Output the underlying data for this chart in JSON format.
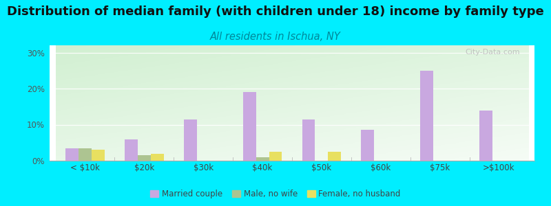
{
  "title": "Distribution of median family (with children under 18) income by family type",
  "subtitle": "All residents in Ischua, NY",
  "categories": [
    "< $10k",
    "$20k",
    "$30k",
    "$40k",
    "$50k",
    "$60k",
    "$75k",
    ">$100k"
  ],
  "married_couple": [
    3.5,
    6.0,
    11.5,
    19.0,
    11.5,
    8.5,
    25.0,
    14.0
  ],
  "male_no_wife": [
    3.5,
    1.5,
    0.0,
    1.0,
    0.0,
    0.0,
    0.0,
    0.0
  ],
  "female_no_husband": [
    3.0,
    2.0,
    0.0,
    2.5,
    2.5,
    0.0,
    0.0,
    0.0
  ],
  "color_married": "#c9a8e0",
  "color_male": "#adc491",
  "color_female": "#e8e060",
  "background_outer": "#00eeff",
  "ylim": [
    0,
    32
  ],
  "yticks": [
    0,
    10,
    20,
    30
  ],
  "ytick_labels": [
    "0%",
    "10%",
    "20%",
    "30%"
  ],
  "watermark": "City-Data.com",
  "title_fontsize": 13,
  "subtitle_fontsize": 10.5,
  "bar_width": 0.22,
  "legend_labels": [
    "Married couple",
    "Male, no wife",
    "Female, no husband"
  ]
}
